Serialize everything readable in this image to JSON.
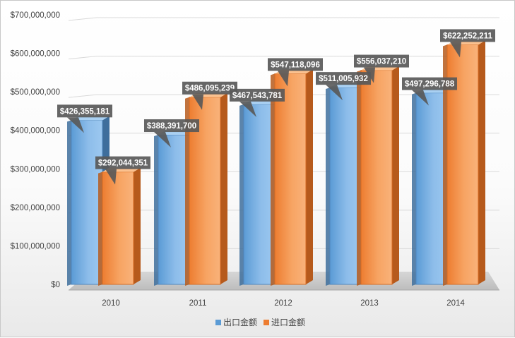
{
  "chart_data": {
    "type": "bar",
    "categories": [
      "2010",
      "2011",
      "2012",
      "2013",
      "2014"
    ],
    "series": [
      {
        "name": "出口金额",
        "values": [
          426355181,
          388391700,
          467543781,
          511005932,
          497296788
        ],
        "labels": [
          "$426,355,181",
          "$388,391,700",
          "$467,543,781",
          "$511,005,932",
          "$497,296,788"
        ],
        "color": "#5B9BD5"
      },
      {
        "name": "进口金额",
        "values": [
          292044351,
          486095239,
          547118096,
          556037210,
          622252211
        ],
        "labels": [
          "$292,044,351",
          "$486,095,239",
          "$547,118,096",
          "$556,037,210",
          "$622,252,211"
        ],
        "color": "#ED7D31"
      }
    ],
    "yticks": [
      "$0",
      "$100,000,000",
      "$200,000,000",
      "$300,000,000",
      "$400,000,000",
      "$500,000,000",
      "$600,000,000",
      "$700,000,000"
    ],
    "ylim": [
      0,
      700000000
    ],
    "grid": true,
    "legend_position": "bottom",
    "style": "3d-clustered-column"
  }
}
